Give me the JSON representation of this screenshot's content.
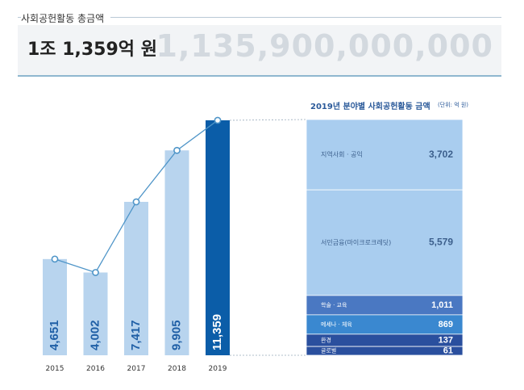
{
  "header": {
    "label": "사회공헌활동 총금액",
    "total_korean": "1조 1,359억 원",
    "total_number": "1,135,900,000,000"
  },
  "colors": {
    "bar_light": "#b8d4ee",
    "bar_highlight": "#0b5da8",
    "line": "#4f95c8",
    "value_text": "#1f5fa6"
  },
  "chart_data": [
    {
      "type": "bar",
      "categories": [
        "2015",
        "2016",
        "2017",
        "2018",
        "2019"
      ],
      "values": [
        4651,
        4002,
        7417,
        9905,
        11359
      ],
      "value_labels": [
        "4,651",
        "4,002",
        "7,417",
        "9,905",
        "11,359"
      ],
      "highlight": "2019",
      "trend_line": true,
      "ylim": [
        0,
        11359
      ],
      "grid": false
    },
    {
      "type": "bar",
      "stacked": true,
      "title": "2019년 분야별 사회공헌활동 금액",
      "unit": "(단위: 억 원)",
      "segments": [
        {
          "name": "지역사회 · 공익",
          "value": 3702,
          "label": "3,702",
          "color": "#a9cdef"
        },
        {
          "name": "서민금융(마이크로크레딧)",
          "value": 5579,
          "label": "5,579",
          "color": "#a9cdef"
        },
        {
          "name": "학술 · 교육",
          "value": 1011,
          "label": "1,011",
          "color": "#4a78c2"
        },
        {
          "name": "메세나 · 체육",
          "value": 869,
          "label": "869",
          "color": "#3a88d0"
        },
        {
          "name": "환경",
          "value": 137,
          "label": "137",
          "color": "#2a4f9e"
        },
        {
          "name": "글로벌",
          "value": 61,
          "label": "61",
          "color": "#2a4f9e"
        }
      ],
      "total": 11359
    }
  ]
}
